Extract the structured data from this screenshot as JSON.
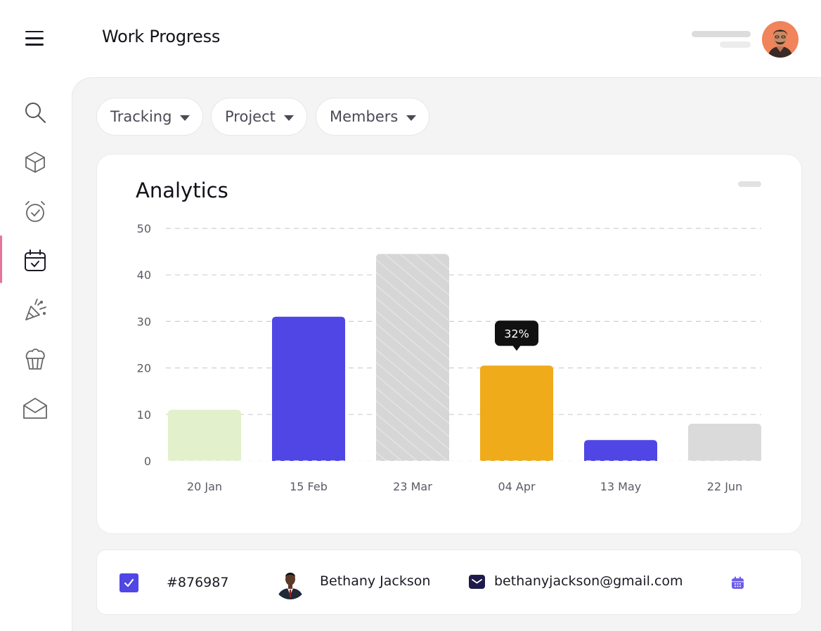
{
  "header": {
    "title": "Work Progress"
  },
  "sidebar": {
    "items": [
      {
        "icon": "search-icon"
      },
      {
        "icon": "box-icon"
      },
      {
        "icon": "alarm-clock-icon"
      },
      {
        "icon": "calendar-check-icon",
        "active": true
      },
      {
        "icon": "party-popper-icon"
      },
      {
        "icon": "cupcake-icon"
      },
      {
        "icon": "mail-open-icon"
      }
    ],
    "accent_color": "#e7739b"
  },
  "filters": [
    {
      "label": "Tracking"
    },
    {
      "label": "Project"
    },
    {
      "label": "Members"
    }
  ],
  "analytics": {
    "title": "Analytics"
  },
  "chart_data": {
    "type": "bar",
    "categories": [
      "20 Jan",
      "15 Feb",
      "23 Mar",
      "04 Apr",
      "13 May",
      "22 Jun"
    ],
    "values": [
      11,
      31,
      44.5,
      20.5,
      4.5,
      8
    ],
    "colors": [
      "#e3f0cc",
      "#4f46e5",
      "#d6d6d6",
      "#efab1a",
      "#4f46e5",
      "#dadada"
    ],
    "hatched": [
      false,
      false,
      true,
      false,
      false,
      false
    ],
    "ylim": [
      0,
      50
    ],
    "yticks": [
      "0",
      "10",
      "20",
      "30",
      "40",
      "50"
    ],
    "grid": true,
    "tooltip": {
      "category": "04 Apr",
      "text": "32%"
    },
    "title": "",
    "xlabel": "",
    "ylabel": ""
  },
  "row": {
    "checked": true,
    "id": "#876987",
    "name": "Bethany Jackson",
    "email": "bethanyjackson@gmail.com"
  },
  "colors": {
    "accent": "#4f46e5",
    "highlight": "#efab1a"
  }
}
